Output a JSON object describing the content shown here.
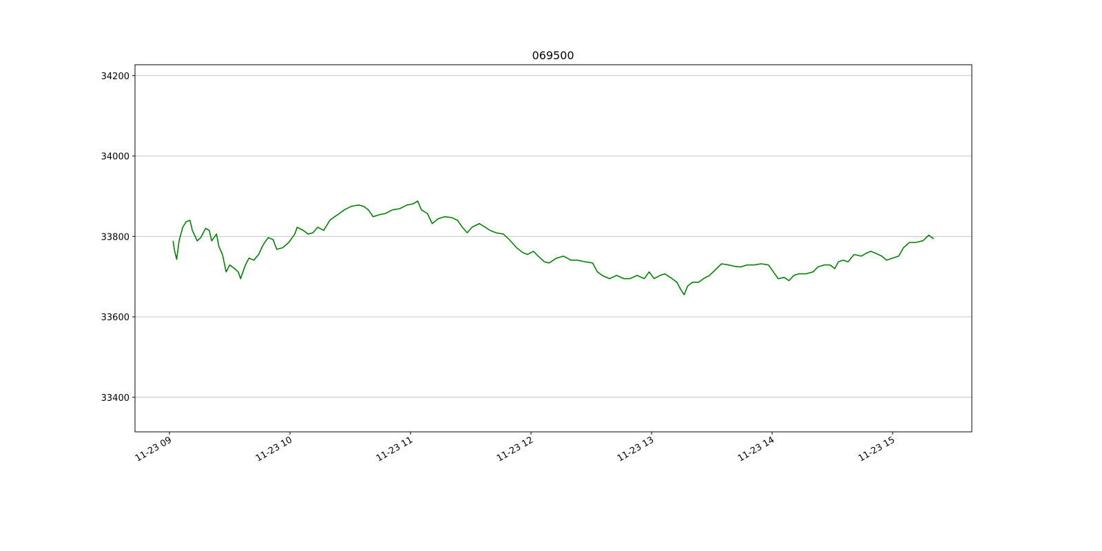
{
  "chart_data": {
    "type": "line",
    "title": "069500",
    "x": [
      9.03,
      9.04,
      9.06,
      9.08,
      9.11,
      9.14,
      9.17,
      9.19,
      9.23,
      9.26,
      9.3,
      9.33,
      9.35,
      9.39,
      9.41,
      9.44,
      9.47,
      9.5,
      9.54,
      9.57,
      9.59,
      9.63,
      9.66,
      9.7,
      9.74,
      9.77,
      9.79,
      9.82,
      9.86,
      9.89,
      9.94,
      9.99,
      10.04,
      10.06,
      10.11,
      10.15,
      10.19,
      10.23,
      10.28,
      10.33,
      10.37,
      10.41,
      10.45,
      10.51,
      10.57,
      10.61,
      10.65,
      10.69,
      10.74,
      10.79,
      10.85,
      10.91,
      10.97,
      11.02,
      11.06,
      11.09,
      11.14,
      11.18,
      11.23,
      11.28,
      11.34,
      11.39,
      11.43,
      11.47,
      11.51,
      11.57,
      11.62,
      11.66,
      11.71,
      11.77,
      11.82,
      11.88,
      11.93,
      11.97,
      12.02,
      12.06,
      12.11,
      12.15,
      12.21,
      12.27,
      12.33,
      12.38,
      12.45,
      12.51,
      12.55,
      12.59,
      12.65,
      12.71,
      12.77,
      12.82,
      12.88,
      12.94,
      12.98,
      13.02,
      13.07,
      13.11,
      13.17,
      13.21,
      13.24,
      13.27,
      13.3,
      13.34,
      13.39,
      13.43,
      13.48,
      13.54,
      13.58,
      13.64,
      13.7,
      13.74,
      13.79,
      13.85,
      13.91,
      13.97,
      14.01,
      14.05,
      14.1,
      14.14,
      14.18,
      14.22,
      14.28,
      14.34,
      14.38,
      14.43,
      14.48,
      14.52,
      14.55,
      14.59,
      14.63,
      14.68,
      14.74,
      14.78,
      14.82,
      14.86,
      14.91,
      14.95,
      15.0,
      15.05,
      15.09,
      15.14,
      15.19,
      15.25,
      15.3,
      15.34
    ],
    "series": [
      {
        "color": "#008000",
        "values": [
          33789,
          33768,
          33743,
          33789,
          33823,
          33837,
          33840,
          33815,
          33789,
          33797,
          33820,
          33815,
          33789,
          33806,
          33775,
          33755,
          33712,
          33729,
          33720,
          33712,
          33695,
          33729,
          33746,
          33741,
          33755,
          33775,
          33785,
          33797,
          33792,
          33768,
          33772,
          33785,
          33806,
          33823,
          33815,
          33806,
          33809,
          33823,
          33815,
          33840,
          33849,
          33857,
          33866,
          33875,
          33878,
          33875,
          33866,
          33849,
          33854,
          33857,
          33866,
          33869,
          33878,
          33881,
          33888,
          33866,
          33857,
          33832,
          33844,
          33849,
          33847,
          33840,
          33823,
          33809,
          33823,
          33832,
          33823,
          33815,
          33809,
          33806,
          33792,
          33772,
          33760,
          33755,
          33763,
          33751,
          33737,
          33734,
          33746,
          33751,
          33741,
          33741,
          33737,
          33734,
          33712,
          33703,
          33695,
          33703,
          33695,
          33695,
          33703,
          33695,
          33712,
          33695,
          33703,
          33707,
          33695,
          33686,
          33669,
          33655,
          33677,
          33686,
          33686,
          33695,
          33703,
          33720,
          33732,
          33729,
          33725,
          33724,
          33729,
          33729,
          33732,
          33729,
          33712,
          33695,
          33698,
          33690,
          33703,
          33707,
          33707,
          33712,
          33724,
          33729,
          33729,
          33720,
          33737,
          33741,
          33737,
          33755,
          33751,
          33758,
          33763,
          33758,
          33751,
          33741,
          33746,
          33751,
          33772,
          33785,
          33785,
          33789,
          33803,
          33794
        ]
      }
    ],
    "xlim": [
      8.714,
      15.657
    ],
    "xticks": [
      {
        "value": 9,
        "label": "11-23 09"
      },
      {
        "value": 10,
        "label": "11-23 10"
      },
      {
        "value": 11,
        "label": "11-23 11"
      },
      {
        "value": 12,
        "label": "11-23 12"
      },
      {
        "value": 13,
        "label": "11-23 13"
      },
      {
        "value": 14,
        "label": "11-23 14"
      },
      {
        "value": 15,
        "label": "11-23 15"
      }
    ],
    "ylim": [
      33314,
      34227
    ],
    "yticks": [
      33400,
      33600,
      33800,
      34000,
      34200
    ],
    "grid": "y"
  }
}
